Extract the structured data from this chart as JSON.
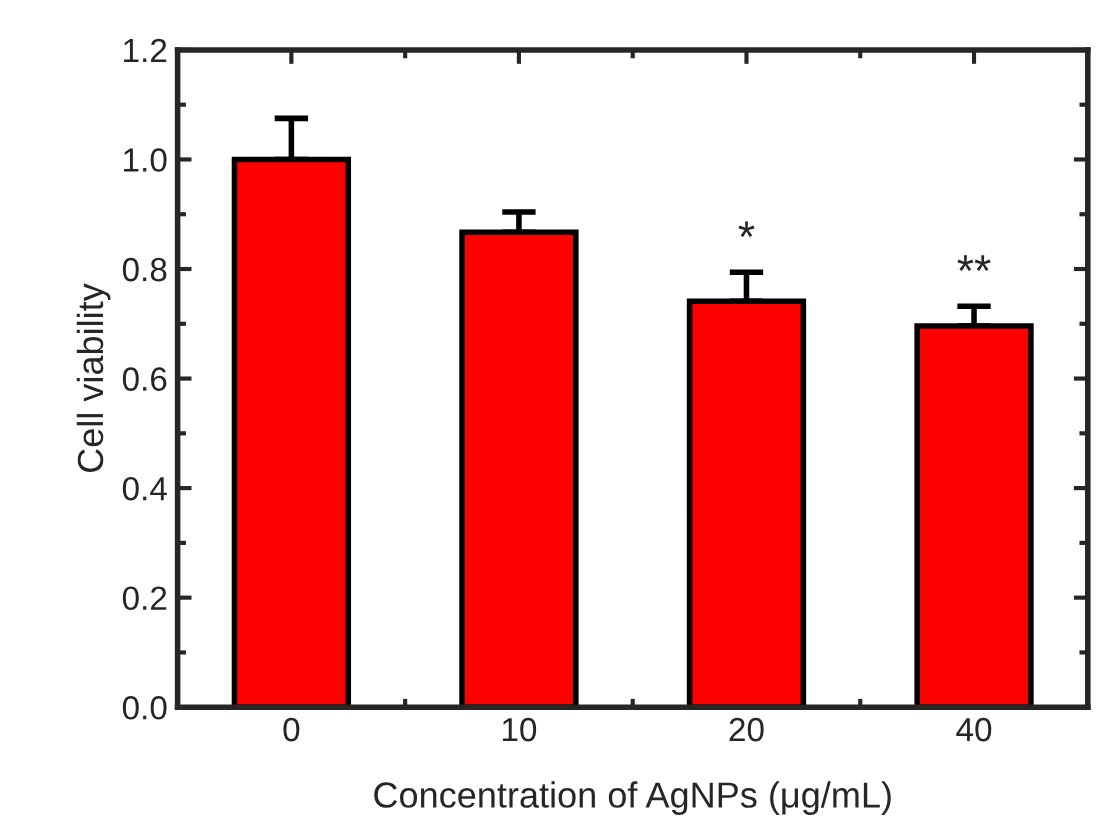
{
  "chart_data": {
    "type": "bar",
    "xlabel": "Concentration of AgNPs (μg/mL)",
    "ylabel": "Cell viability",
    "categories": [
      "0",
      "10",
      "20",
      "40"
    ],
    "series": [
      {
        "color": "#ff0000",
        "values": [
          1.0,
          0.867,
          0.741,
          0.696
        ],
        "errors": [
          [
            1.0,
            1.075
          ],
          [
            0.867,
            0.904
          ],
          [
            0.741,
            0.794
          ],
          [
            0.696,
            0.732
          ]
        ]
      }
    ],
    "ylim": [
      0,
      1.2
    ],
    "yticks": [
      {
        "value": 0,
        "label": "0.0"
      },
      {
        "value": 0.2,
        "label": "0.2"
      },
      {
        "value": 0.4,
        "label": "0.4"
      },
      {
        "value": 0.6,
        "label": "0.6"
      },
      {
        "value": 0.8,
        "label": "0.8"
      },
      {
        "value": 1.0,
        "label": "1.0"
      },
      {
        "value": 1.2,
        "label": "1.2"
      }
    ],
    "annotations": [
      "*",
      "**"
    ],
    "grid": false,
    "legend": false
  }
}
